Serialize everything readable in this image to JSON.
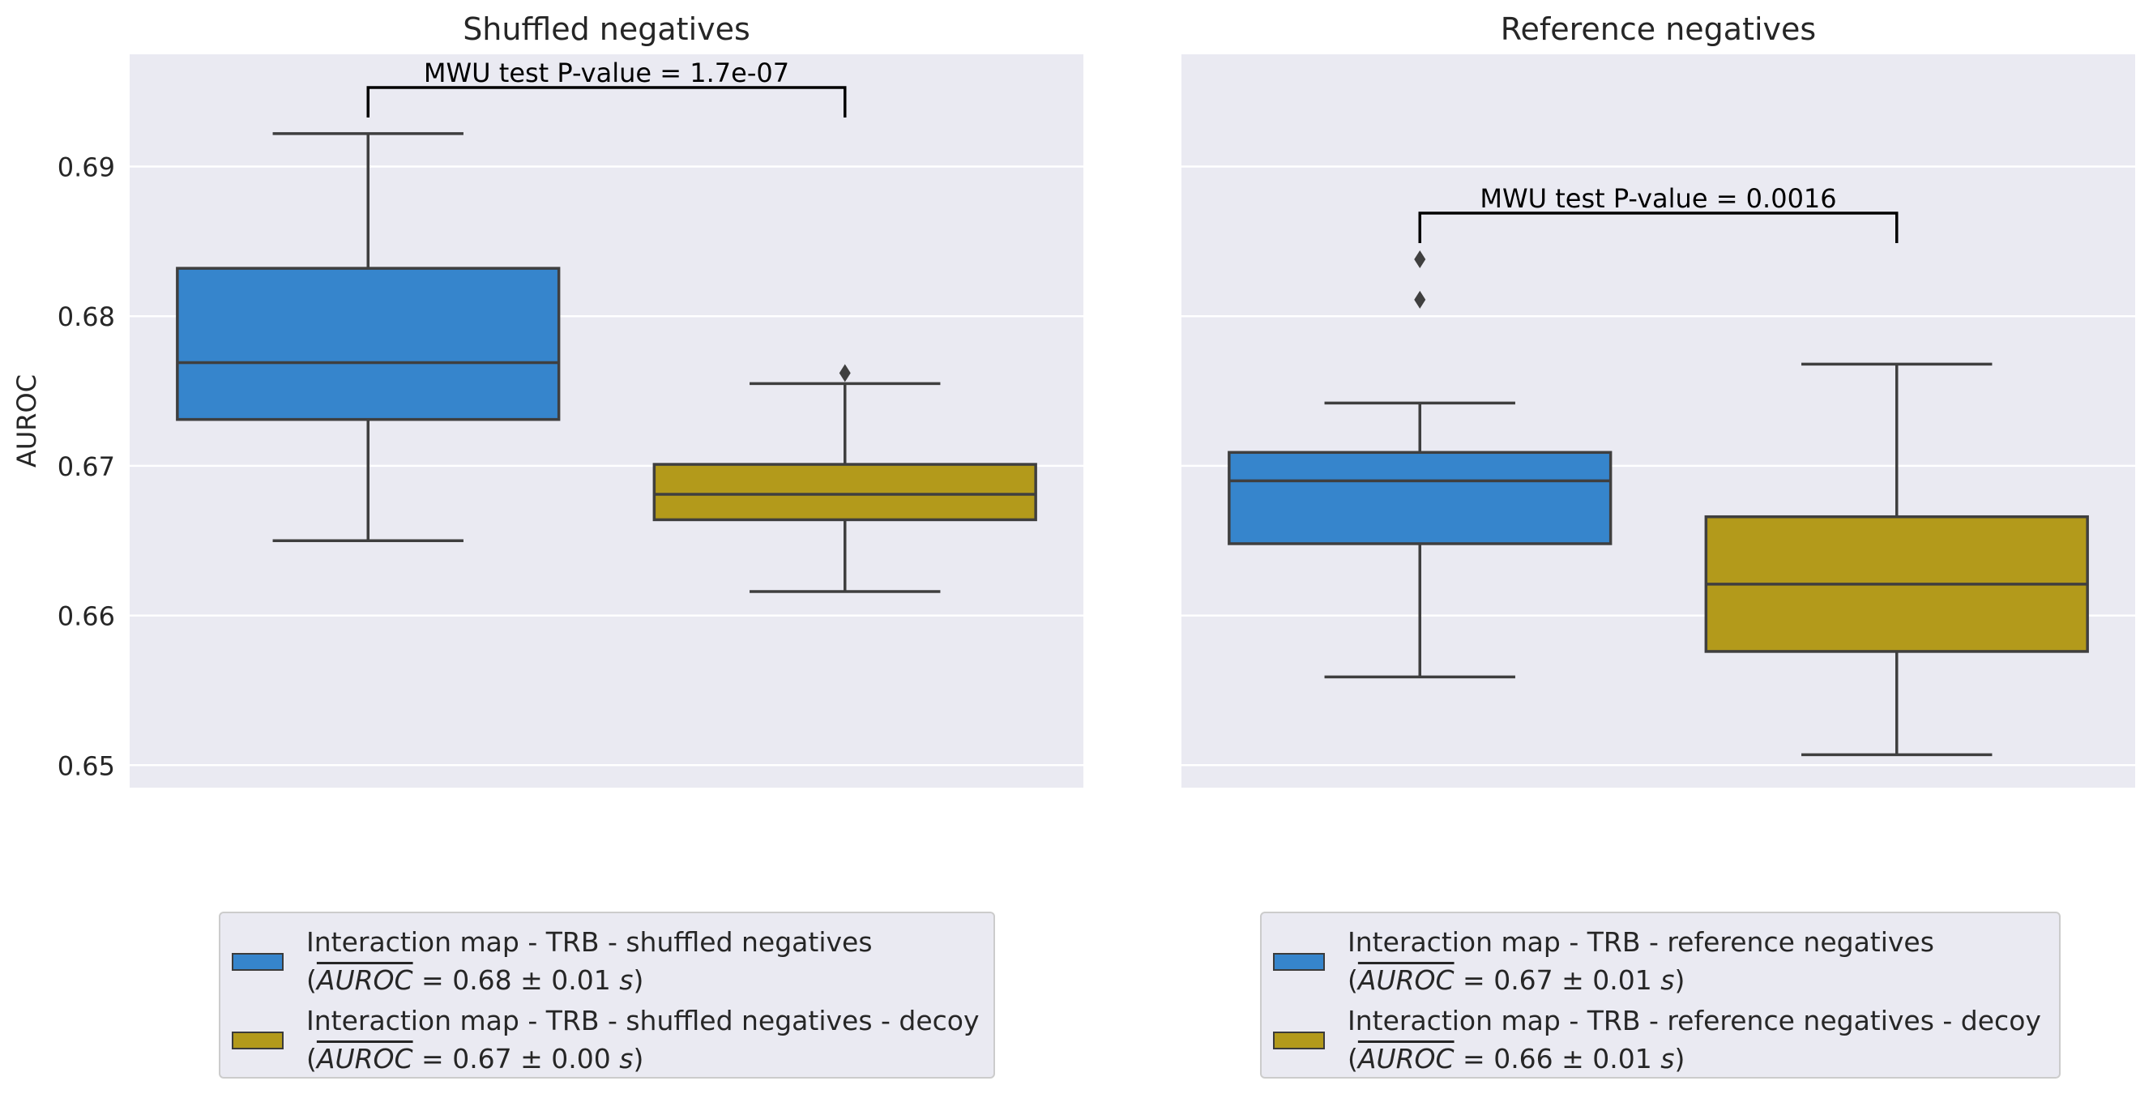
{
  "chart_data": [
    {
      "type": "box",
      "title": "Shuffled negatives",
      "ylabel": "AUROC",
      "ylim": [
        0.6485,
        0.6975
      ],
      "yticks": [
        0.65,
        0.66,
        0.67,
        0.68,
        0.69
      ],
      "ytick_labels": [
        "0.65",
        "0.66",
        "0.67",
        "0.68",
        "0.69"
      ],
      "grid": true,
      "series": [
        {
          "name": "Interaction map - TRB - shuffled negatives",
          "mean_text": "0.68 ± 0.01",
          "color": "#3685cc",
          "whisker_low": 0.665,
          "q1": 0.6731,
          "median": 0.6769,
          "q3": 0.6832,
          "whisker_high": 0.6922,
          "outliers": []
        },
        {
          "name": "Interaction map - TRB - shuffled negatives - decoy",
          "mean_text": "0.67 ± 0.00",
          "color": "#b39a1b",
          "whisker_low": 0.6616,
          "q1": 0.6664,
          "median": 0.6681,
          "q3": 0.6701,
          "whisker_high": 0.6755,
          "outliers": [
            0.6762
          ]
        }
      ],
      "annotation": "MWU test P-value = 1.7e-07",
      "legend_prefix": "(",
      "legend_metric": "AUROC",
      "legend_unit": "s",
      "legend_suffix": ")",
      "legend_position": "bottom"
    },
    {
      "type": "box",
      "title": "Reference negatives",
      "ylabel": "",
      "ylim": [
        0.6485,
        0.6975
      ],
      "yticks": [
        0.65,
        0.66,
        0.67,
        0.68,
        0.69
      ],
      "ytick_labels": [],
      "grid": true,
      "series": [
        {
          "name": "Interaction map - TRB - reference negatives",
          "mean_text": "0.67 ± 0.01",
          "color": "#3685cc",
          "whisker_low": 0.6559,
          "q1": 0.6648,
          "median": 0.669,
          "q3": 0.6709,
          "whisker_high": 0.6742,
          "outliers": [
            0.6811,
            0.6838
          ]
        },
        {
          "name": "Interaction map - TRB - reference negatives - decoy",
          "mean_text": "0.66 ± 0.01",
          "color": "#b39a1b",
          "whisker_low": 0.6507,
          "q1": 0.6576,
          "median": 0.6621,
          "q3": 0.6666,
          "whisker_high": 0.6768,
          "outliers": []
        }
      ],
      "annotation": "MWU test P-value = 0.0016",
      "legend_prefix": "(",
      "legend_metric": "AUROC",
      "legend_unit": "s",
      "legend_suffix": ")",
      "legend_position": "bottom"
    }
  ]
}
